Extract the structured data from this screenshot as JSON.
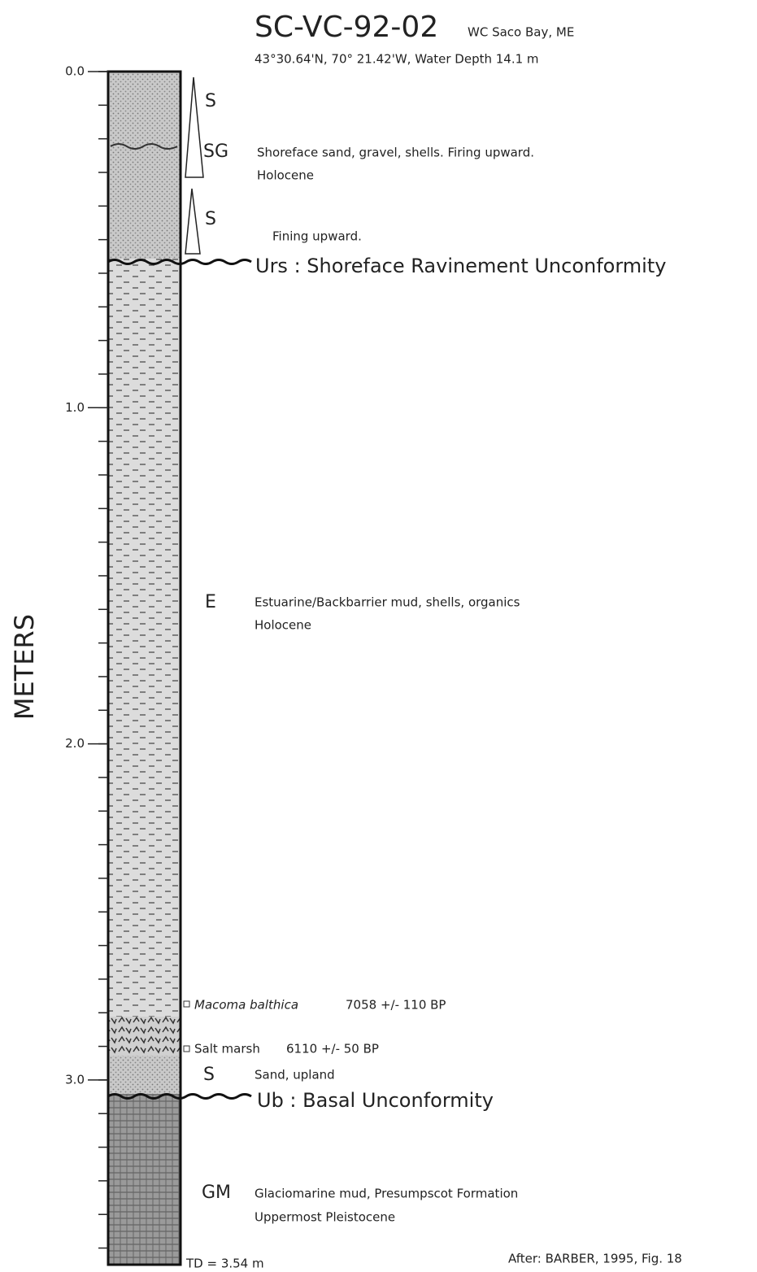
{
  "header": {
    "core_id": "SC-VC-92-02",
    "location": "WC Saco Bay, ME",
    "coordinates": "43°30.64'N, 70° 21.42'W,  Water Depth 14.1 m"
  },
  "axis": {
    "label": "METERS",
    "ticks": [
      {
        "value": 0,
        "label": "0.0"
      },
      {
        "value": 1,
        "label": "1.0"
      },
      {
        "value": 2,
        "label": "2.0"
      },
      {
        "value": 3,
        "label": "3.0"
      }
    ]
  },
  "units": [
    {
      "code": "S"
    },
    {
      "code": "SG",
      "description": [
        "Shoreface sand, gravel, shells.  Firing upward.",
        "Holocene"
      ]
    },
    {
      "code": "S",
      "description": [
        "Fining upward."
      ]
    },
    {
      "code": "E",
      "description": [
        "Estuarine/Backbarrier mud, shells, organics",
        "Holocene"
      ]
    },
    {
      "code": "S",
      "description": [
        "Sand, upland"
      ]
    },
    {
      "code": "GM",
      "description": [
        "Glaciomarine mud, Presumpscot Formation",
        "Uppermost Pleistocene"
      ]
    }
  ],
  "unconformities": [
    "Urs : Shoreface Ravinement Unconformity",
    "Ub : Basal Unconformity"
  ],
  "dates": [
    {
      "material": "Macoma balthica",
      "age": "7058 +/- 110 BP"
    },
    {
      "material": "Salt marsh",
      "age": "6110 +/- 50 BP"
    }
  ],
  "total_depth": "TD = 3.54 m",
  "source": "After: BARBER, 1995, Fig. 18"
}
